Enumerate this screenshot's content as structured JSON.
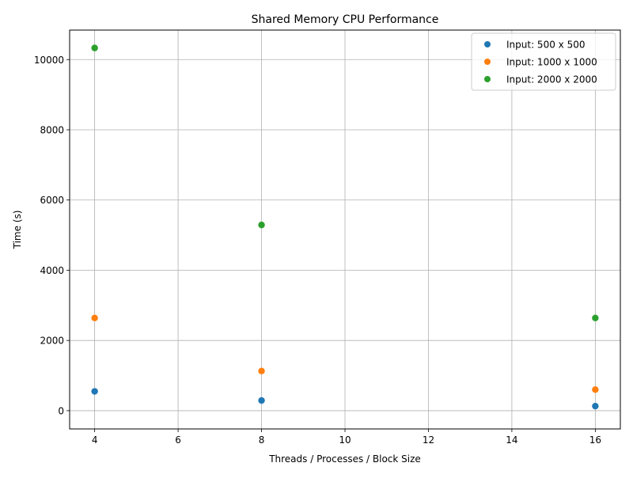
{
  "chart_data": {
    "type": "scatter",
    "title": "Shared Memory CPU Performance",
    "xlabel": "Threads / Processes / Block Size",
    "ylabel": "Time (s)",
    "xlim": [
      3.4,
      16.6
    ],
    "ylim": [
      -520,
      10840
    ],
    "xticks": [
      4,
      6,
      8,
      10,
      12,
      14,
      16
    ],
    "yticks": [
      0,
      2000,
      4000,
      6000,
      8000,
      10000
    ],
    "grid": true,
    "legend_position": "top-right",
    "series": [
      {
        "name": "Input: 500 x 500",
        "color": "#1f77b4",
        "x": [
          4,
          8,
          16
        ],
        "y": [
          550,
          290,
          130
        ]
      },
      {
        "name": "Input: 1000 x 1000",
        "color": "#ff7f0e",
        "x": [
          4,
          8,
          16
        ],
        "y": [
          2640,
          1130,
          600
        ]
      },
      {
        "name": "Input: 2000 x 2000",
        "color": "#2ca02c",
        "x": [
          4,
          8,
          16
        ],
        "y": [
          10330,
          5290,
          2640
        ]
      }
    ]
  }
}
